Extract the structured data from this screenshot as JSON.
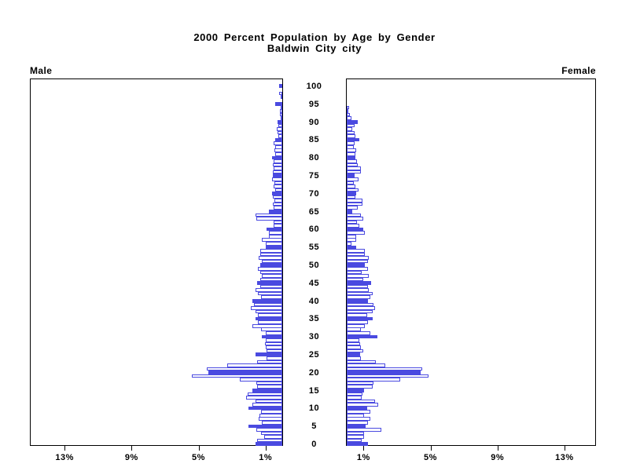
{
  "title": {
    "line1": "2000 Percent Population by Age by Gender",
    "line2": "Baldwin City city"
  },
  "panels": {
    "male_label": "Male",
    "female_label": "Female"
  },
  "colors": {
    "bar_blue": "#4a4ae0",
    "axis_black": "#000000",
    "background": "#ffffff"
  },
  "chart_data": {
    "type": "bar",
    "variant": "population-pyramid",
    "title": "2000 Percent Population by Age by Gender",
    "subtitle": "Baldwin City city",
    "left_series": "Male",
    "right_series": "Female",
    "unit": "percent of population",
    "age_min": 0,
    "age_max": 100,
    "age_ticks": [
      0,
      5,
      10,
      15,
      20,
      25,
      30,
      35,
      40,
      45,
      50,
      55,
      60,
      65,
      70,
      75,
      80,
      85,
      90,
      95,
      100
    ],
    "pct_ticks": [
      1,
      5,
      9,
      13
    ],
    "pct_tick_suffix": "%",
    "pct_axis_max": 15.5,
    "grid": false,
    "legend": false,
    "solid_fill_rule": "ages divisible by 5 drawn as solid blue bars; all other ages drawn as white bars with blue outline",
    "male_pct_by_age": [
      1.6,
      1.5,
      1.1,
      1.25,
      1.55,
      2.0,
      1.2,
      1.4,
      1.35,
      1.25,
      2.0,
      1.8,
      1.6,
      2.15,
      2.05,
      1.8,
      1.5,
      1.55,
      2.55,
      5.4,
      4.4,
      4.5,
      3.3,
      1.5,
      0.95,
      1.6,
      0.95,
      1.0,
      1.05,
      1.0,
      1.2,
      1.0,
      1.25,
      1.8,
      1.45,
      1.6,
      1.45,
      1.6,
      1.9,
      1.7,
      1.8,
      1.25,
      1.45,
      1.6,
      1.3,
      1.5,
      1.3,
      1.2,
      1.3,
      1.45,
      1.3,
      1.2,
      1.4,
      1.3,
      1.3,
      1.0,
      1.0,
      1.2,
      0.8,
      0.8,
      0.95,
      0.5,
      0.5,
      1.55,
      1.6,
      0.8,
      0.5,
      0.55,
      0.45,
      0.55,
      0.6,
      0.4,
      0.5,
      0.45,
      0.6,
      0.55,
      0.55,
      0.5,
      0.55,
      0.5,
      0.6,
      0.4,
      0.45,
      0.4,
      0.5,
      0.4,
      0.25,
      0.3,
      0.35,
      0.25,
      0.3,
      0.1,
      0.15,
      0.15,
      0.1,
      0.4,
      0,
      0.1,
      0.2,
      0,
      0.2
    ],
    "female_pct_by_age": [
      1.25,
      0.9,
      1.05,
      1.05,
      2.05,
      1.15,
      1.25,
      1.4,
      1.05,
      1.4,
      1.2,
      1.9,
      1.7,
      0.9,
      0.95,
      1.05,
      1.55,
      1.6,
      3.2,
      4.9,
      4.4,
      4.5,
      2.3,
      1.75,
      0.85,
      0.8,
      1.0,
      0.85,
      0.8,
      0.75,
      1.85,
      1.4,
      0.85,
      1.1,
      1.25,
      1.55,
      1.2,
      1.55,
      1.7,
      1.6,
      1.25,
      1.4,
      1.55,
      1.3,
      1.25,
      1.45,
      1.0,
      1.3,
      0.9,
      1.25,
      1.1,
      1.25,
      1.3,
      1.1,
      1.1,
      0.55,
      0.3,
      0.55,
      0.55,
      1.1,
      1.0,
      0.75,
      0.6,
      1.0,
      0.85,
      0.35,
      0.65,
      0.95,
      0.95,
      0.5,
      0.55,
      0.7,
      0.5,
      0.4,
      0.7,
      0.45,
      0.85,
      0.85,
      0.65,
      0.6,
      0.5,
      0.5,
      0.55,
      0.4,
      0.45,
      0.75,
      0.5,
      0.45,
      0.35,
      0.45,
      0.65,
      0.3,
      0.2,
      0.1,
      0.15,
      0,
      0,
      0,
      0,
      0,
      0
    ]
  }
}
